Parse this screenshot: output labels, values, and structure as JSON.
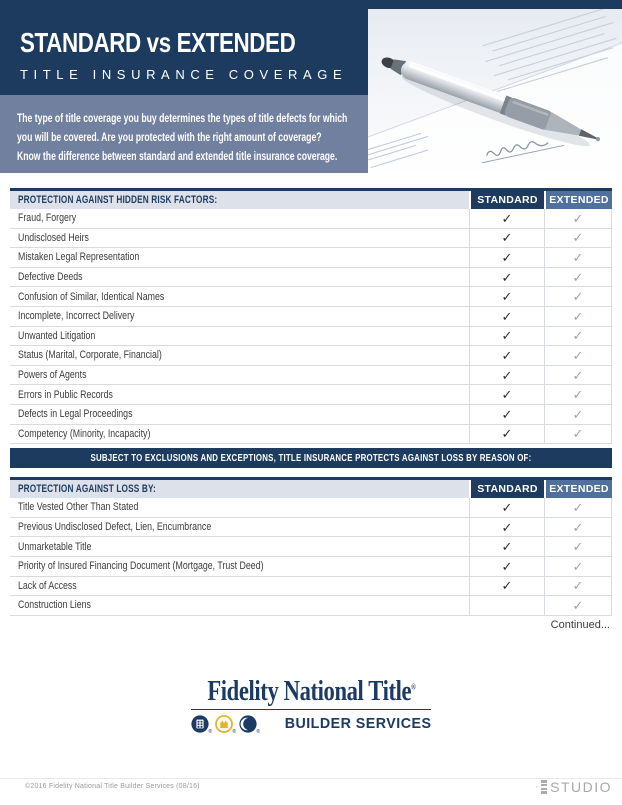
{
  "header": {
    "title": "STANDARD vs EXTENDED",
    "subtitle": "TITLE INSURANCE COVERAGE"
  },
  "intro": {
    "lines": [
      "The type of title coverage you buy determines the types of title defects for which",
      "you will be covered. Are you protected with the right amount of coverage?",
      "Know the difference between standard and extended title insurance coverage."
    ]
  },
  "photo": {
    "signature_label": "Signature"
  },
  "check_glyph": "✓",
  "tables": [
    {
      "header": "PROTECTION AGAINST HIDDEN RISK FACTORS:",
      "columns": [
        "STANDARD",
        "EXTENDED"
      ],
      "rows": [
        {
          "label": "Fraud, Forgery",
          "standard": true,
          "extended": true
        },
        {
          "label": "Undisclosed Heirs",
          "standard": true,
          "extended": true
        },
        {
          "label": "Mistaken Legal Representation",
          "standard": true,
          "extended": true
        },
        {
          "label": "Defective Deeds",
          "standard": true,
          "extended": true
        },
        {
          "label": "Confusion of Similar, Identical Names",
          "standard": true,
          "extended": true
        },
        {
          "label": "Incomplete, Incorrect Delivery",
          "standard": true,
          "extended": true
        },
        {
          "label": "Unwanted Litigation",
          "standard": true,
          "extended": true
        },
        {
          "label": "Status (Marital, Corporate, Financial)",
          "standard": true,
          "extended": true
        },
        {
          "label": "Powers of Agents",
          "standard": true,
          "extended": true
        },
        {
          "label": "Errors in Public Records",
          "standard": true,
          "extended": true
        },
        {
          "label": "Defects in Legal Proceedings",
          "standard": true,
          "extended": true
        },
        {
          "label": "Competency (Minority, Incapacity)",
          "standard": true,
          "extended": true
        }
      ]
    },
    {
      "header": "PROTECTION AGAINST LOSS BY:",
      "columns": [
        "STANDARD",
        "EXTENDED"
      ],
      "rows": [
        {
          "label": "Title Vested Other Than Stated",
          "standard": true,
          "extended": true
        },
        {
          "label": "Previous Undisclosed Defect, Lien, Encumbrance",
          "standard": true,
          "extended": true
        },
        {
          "label": "Unmarketable Title",
          "standard": true,
          "extended": true
        },
        {
          "label": "Priority of Insured Financing Document (Mortgage, Trust Deed)",
          "standard": true,
          "extended": true
        },
        {
          "label": "Lack of Access",
          "standard": true,
          "extended": true
        },
        {
          "label": "Construction Liens",
          "standard": false,
          "extended": true
        }
      ]
    }
  ],
  "banner": "SUBJECT TO EXCLUSIONS AND EXCEPTIONS, TITLE INSURANCE PROTECTS AGAINST LOSS BY REASON OF:",
  "continued_label": "Continued...",
  "footer": {
    "brand": "Fidelity National Title",
    "registered_mark": "®",
    "division": "BUILDER SERVICES",
    "copyright": "©2016 Fidelity National Title Builder Services (08/16)",
    "studio_label": "STUDIO"
  },
  "colors": {
    "navy": "#1d3b5f",
    "steel_blue": "#50709e",
    "slate_panel": "#72809f",
    "header_row_bg": "#dde1e9",
    "gold": "#e4b427",
    "standard_check": "#2e2e2e",
    "extended_check": "#9aa3ad"
  }
}
